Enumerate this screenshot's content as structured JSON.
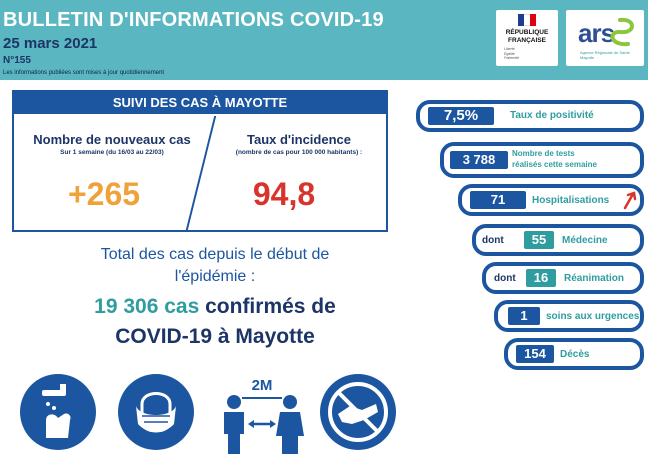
{
  "header": {
    "title": "BULLETIN D'INFORMATIONS COVID-19",
    "date": "25 mars 2021",
    "number": "N°155",
    "note": "Les informations publiées sont mises à jour quotidiennement"
  },
  "logos": {
    "republique_line1": "RÉPUBLIQUE",
    "republique_line2": "FRANÇAISE",
    "republique_motto": [
      "Liberté",
      "Égalité",
      "Fraternité"
    ],
    "ars_word": "ars",
    "ars_sub": "Agence Régionale de Santé Mayotte"
  },
  "suivi": {
    "heading": "SUIVI DES CAS À MAYOTTE",
    "new_cases_title": "Nombre de nouveaux cas",
    "new_cases_sub": "Sur 1 semaine (du 16/03 au 22/03)",
    "new_cases_value": "+265",
    "incidence_title": "Taux d'incidence",
    "incidence_sub": "(nombre de cas pour 100 000 habitants) :",
    "incidence_value": "94,8"
  },
  "total": {
    "line1": "Total des cas depuis le début de",
    "line2": "l'épidémie :",
    "count": "19 306 cas",
    "confirmed": "confirmés de",
    "line4": "COVID-19 à Mayotte"
  },
  "pictograms": {
    "distance_label": "2M"
  },
  "stats": {
    "positivity": {
      "value": "7,5%",
      "label": "Taux de positivité"
    },
    "tests": {
      "value": "3 788",
      "label_line1": "Nombre de tests",
      "label_line2": "réalisés cette semaine"
    },
    "hospital": {
      "value": "71",
      "label": "Hospitalisations"
    },
    "medecine": {
      "prefix": "dont",
      "value": "55",
      "label": "Médecine"
    },
    "reanimation": {
      "prefix": "dont",
      "value": "16",
      "label": "Réanimation"
    },
    "urgences": {
      "value": "1",
      "label": "soins aux urgences"
    },
    "deces": {
      "value": "154",
      "label": "Décès"
    }
  },
  "colors": {
    "header_bg": "#5ab6c1",
    "navy": "#1d56a0",
    "teal": "#2f9da0",
    "orange": "#f0a23a",
    "red": "#d8342c"
  }
}
